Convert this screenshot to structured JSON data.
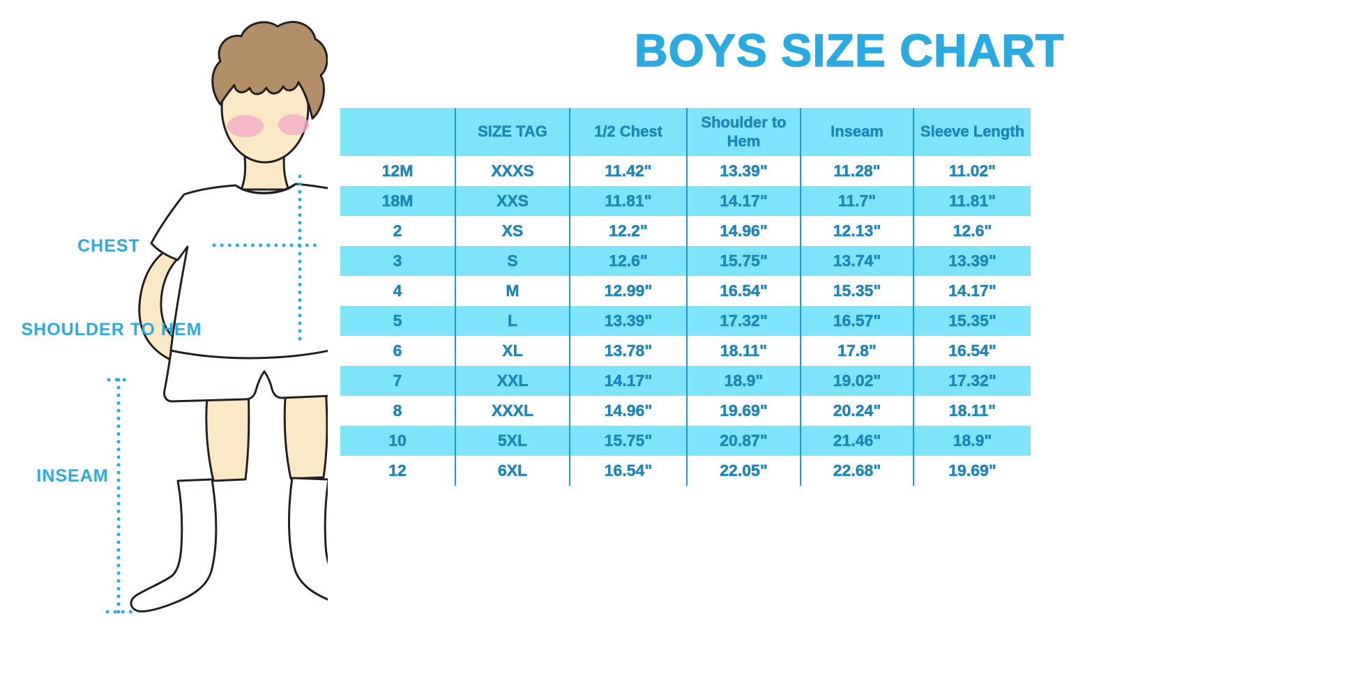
{
  "title": "BOYS SIZE CHART",
  "figure": {
    "chest_label": "CHEST",
    "shoulder_to_hem_label": "SHOULDER TO HEM",
    "inseam_label": "INSEAM"
  },
  "colors": {
    "accent": "#29ABE2",
    "table_text": "#1D86B8",
    "row_band": "#7DE4FA",
    "divider": "#1F9ACC",
    "skin": "#FBE8C5",
    "hair": "#B28F66",
    "blush": "#F3ACC4",
    "outline": "#231F20"
  },
  "chart_data": {
    "type": "table",
    "title": "BOYS SIZE CHART",
    "columns": [
      "",
      "SIZE TAG",
      "1/2 Chest",
      "Shoulder to Hem",
      "Inseam",
      "Sleeve Length"
    ],
    "rows": [
      [
        "12M",
        "XXXS",
        "11.42\"",
        "13.39\"",
        "11.28\"",
        "11.02\""
      ],
      [
        "18M",
        "XXS",
        "11.81\"",
        "14.17\"",
        "11.7\"",
        "11.81\""
      ],
      [
        "2",
        "XS",
        "12.2\"",
        "14.96\"",
        "12.13\"",
        "12.6\""
      ],
      [
        "3",
        "S",
        "12.6\"",
        "15.75\"",
        "13.74\"",
        "13.39\""
      ],
      [
        "4",
        "M",
        "12.99\"",
        "16.54\"",
        "15.35\"",
        "14.17\""
      ],
      [
        "5",
        "L",
        "13.39\"",
        "17.32\"",
        "16.57\"",
        "15.35\""
      ],
      [
        "6",
        "XL",
        "13.78\"",
        "18.11\"",
        "17.8\"",
        "16.54\""
      ],
      [
        "7",
        "XXL",
        "14.17\"",
        "18.9\"",
        "19.02\"",
        "17.32\""
      ],
      [
        "8",
        "XXXL",
        "14.96\"",
        "19.69\"",
        "20.24\"",
        "18.11\""
      ],
      [
        "10",
        "5XL",
        "15.75\"",
        "20.87\"",
        "21.46\"",
        "18.9\""
      ],
      [
        "12",
        "6XL",
        "16.54\"",
        "22.05\"",
        "22.68\"",
        "19.69\""
      ]
    ]
  }
}
